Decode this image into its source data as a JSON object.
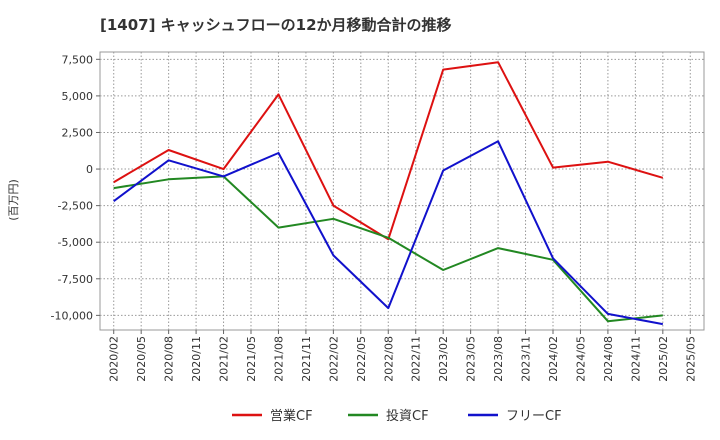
{
  "chart_data": {
    "type": "line",
    "title": "[1407]  キャッシュフローの12か月移動合計の推移",
    "ylabel": "(百万円)",
    "xlabel": "",
    "ylim": [
      -11000,
      8000
    ],
    "yticks": [
      7500,
      5000,
      2500,
      0,
      -2500,
      -5000,
      -7500,
      -10000
    ],
    "ytick_labels": [
      "7,500",
      "5,000",
      "2,500",
      "0",
      "-2,500",
      "-5,000",
      "-7,500",
      "-10,000"
    ],
    "x_ticks": [
      "2020/02",
      "2020/05",
      "2020/08",
      "2020/11",
      "2021/02",
      "2021/05",
      "2021/08",
      "2021/11",
      "2022/02",
      "2022/05",
      "2022/08",
      "2022/11",
      "2023/02",
      "2023/05",
      "2023/08",
      "2023/11",
      "2024/02",
      "2024/05",
      "2024/08",
      "2024/11",
      "2025/02",
      "2025/05"
    ],
    "grid": true,
    "legend_position": "bottom",
    "series": [
      {
        "name": "営業CF",
        "color": "#dd1111",
        "x": [
          "2020/02",
          "2020/08",
          "2021/02",
          "2021/08",
          "2022/02",
          "2022/08",
          "2023/02",
          "2023/08",
          "2024/02",
          "2024/08",
          "2025/02"
        ],
        "values": [
          -900,
          1300,
          0,
          5100,
          -2500,
          -4800,
          6800,
          7300,
          100,
          500,
          -600
        ]
      },
      {
        "name": "投資CF",
        "color": "#228822",
        "x": [
          "2020/02",
          "2020/08",
          "2021/02",
          "2021/08",
          "2022/02",
          "2022/08",
          "2023/02",
          "2023/08",
          "2024/02",
          "2024/08",
          "2025/02"
        ],
        "values": [
          -1300,
          -700,
          -500,
          -4000,
          -3400,
          -4700,
          -6900,
          -5400,
          -6200,
          -10400,
          -10000
        ]
      },
      {
        "name": "フリーCF",
        "color": "#1111cc",
        "x": [
          "2020/02",
          "2020/08",
          "2021/02",
          "2021/08",
          "2022/02",
          "2022/08",
          "2023/02",
          "2023/08",
          "2024/02",
          "2024/08",
          "2025/02"
        ],
        "values": [
          -2200,
          600,
          -500,
          1100,
          -5900,
          -9500,
          -100,
          1900,
          -6100,
          -9900,
          -10600
        ]
      }
    ]
  }
}
